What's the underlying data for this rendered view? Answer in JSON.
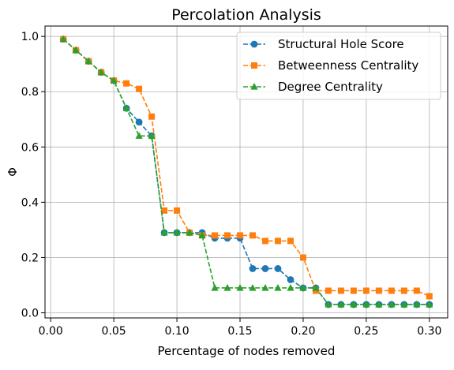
{
  "chart_data": {
    "type": "line",
    "title": "Percolation Analysis",
    "xlabel": "Percentage of nodes removed",
    "ylabel": "Φ",
    "xlim": [
      -0.0045,
      0.3145
    ],
    "ylim": [
      -0.0185,
      1.0375
    ],
    "xticks": [
      0.0,
      0.05,
      0.1,
      0.15,
      0.2,
      0.25,
      0.3
    ],
    "xtick_labels": [
      "0.00",
      "0.05",
      "0.10",
      "0.15",
      "0.20",
      "0.25",
      "0.30"
    ],
    "yticks": [
      0.0,
      0.2,
      0.4,
      0.6,
      0.8,
      1.0
    ],
    "ytick_labels": [
      "0.0",
      "0.2",
      "0.4",
      "0.6",
      "0.8",
      "1.0"
    ],
    "grid": true,
    "legend_position": "top-right",
    "x": [
      0.01,
      0.02,
      0.03,
      0.04,
      0.05,
      0.06,
      0.07,
      0.08,
      0.09,
      0.1,
      0.11,
      0.12,
      0.13,
      0.14,
      0.15,
      0.16,
      0.17,
      0.18,
      0.19,
      0.2,
      0.21,
      0.22,
      0.23,
      0.24,
      0.25,
      0.26,
      0.27,
      0.28,
      0.29,
      0.3
    ],
    "series": [
      {
        "name": "Structural Hole Score",
        "color": "#1f77b4",
        "marker": "circle",
        "values": [
          0.99,
          0.95,
          0.91,
          0.87,
          0.84,
          0.74,
          0.69,
          0.64,
          0.29,
          0.29,
          0.29,
          0.29,
          0.27,
          0.27,
          0.27,
          0.16,
          0.16,
          0.16,
          0.12,
          0.09,
          0.09,
          0.03,
          0.03,
          0.03,
          0.03,
          0.03,
          0.03,
          0.03,
          0.03,
          0.03
        ]
      },
      {
        "name": "Betweenness Centrality",
        "color": "#ff7f0e",
        "marker": "square",
        "values": [
          0.99,
          0.95,
          0.91,
          0.87,
          0.84,
          0.83,
          0.81,
          0.71,
          0.37,
          0.37,
          0.29,
          0.28,
          0.28,
          0.28,
          0.28,
          0.28,
          0.26,
          0.26,
          0.26,
          0.2,
          0.08,
          0.08,
          0.08,
          0.08,
          0.08,
          0.08,
          0.08,
          0.08,
          0.08,
          0.06
        ]
      },
      {
        "name": "Degree Centrality",
        "color": "#2ca02c",
        "marker": "triangle",
        "values": [
          0.99,
          0.95,
          0.91,
          0.87,
          0.84,
          0.74,
          0.64,
          0.64,
          0.29,
          0.29,
          0.29,
          0.28,
          0.09,
          0.09,
          0.09,
          0.09,
          0.09,
          0.09,
          0.09,
          0.09,
          0.09,
          0.03,
          0.03,
          0.03,
          0.03,
          0.03,
          0.03,
          0.03,
          0.03,
          0.03
        ]
      }
    ]
  }
}
